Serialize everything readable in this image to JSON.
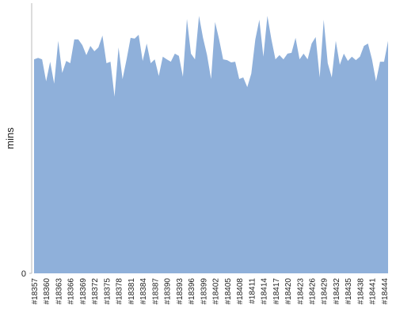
{
  "chart_data": {
    "type": "area",
    "y_label": "mins",
    "color": "#8fb0da",
    "categories": [
      "#18357",
      null,
      null,
      "#18360",
      null,
      null,
      "#18363",
      null,
      null,
      "#18366",
      null,
      null,
      "#18369",
      null,
      null,
      "#18372",
      null,
      null,
      "#18375",
      null,
      null,
      "#18378",
      null,
      null,
      "#18381",
      null,
      null,
      "#18384",
      null,
      null,
      "#18387",
      null,
      null,
      "#18390",
      null,
      null,
      "#18393",
      null,
      null,
      "#18396",
      null,
      null,
      "#18399",
      null,
      null,
      "#18402",
      null,
      null,
      "#18405",
      null,
      null,
      "#18408",
      null,
      null,
      "#18411",
      null,
      null,
      "#18414",
      null,
      null,
      "#18417",
      null,
      null,
      "#18420",
      null,
      null,
      "#18423",
      null,
      null,
      "#18426",
      null,
      null,
      "#18429",
      null,
      null,
      "#18432",
      null,
      null,
      "#18435",
      null,
      null,
      "#18438",
      null,
      null,
      "#18441",
      null,
      null,
      "#18444",
      null
    ],
    "values": [
      55.6,
      56.0,
      55.6,
      49.9,
      55.0,
      49.3,
      60.4,
      52.1,
      55.2,
      54.6,
      60.8,
      60.8,
      59.3,
      56.7,
      59.1,
      57.7,
      58.7,
      61.8,
      54.6,
      55.0,
      45.9,
      58.7,
      50.5,
      55.6,
      61.2,
      61.0,
      62.0,
      55.2,
      59.7,
      54.6,
      55.6,
      51.3,
      56.3,
      55.6,
      55.0,
      57.1,
      56.5,
      51.1,
      66.1,
      57.1,
      55.6,
      66.9,
      61.2,
      56.7,
      50.5,
      65.3,
      60.8,
      55.6,
      55.4,
      54.8,
      55.0,
      50.5,
      50.9,
      48.4,
      51.9,
      60.8,
      65.9,
      56.3,
      66.9,
      60.8,
      55.6,
      56.7,
      55.6,
      57.1,
      57.3,
      61.2,
      55.6,
      57.1,
      55.6,
      59.7,
      61.4,
      50.9,
      65.9,
      54.6,
      50.9,
      60.4,
      54.2,
      57.1,
      55.2,
      56.3,
      55.4,
      56.3,
      59.1,
      59.7,
      55.6,
      49.9,
      55.0,
      55.0,
      60.4
    ],
    "ylim": [
      0,
      70
    ],
    "yticks": [
      0
    ]
  }
}
